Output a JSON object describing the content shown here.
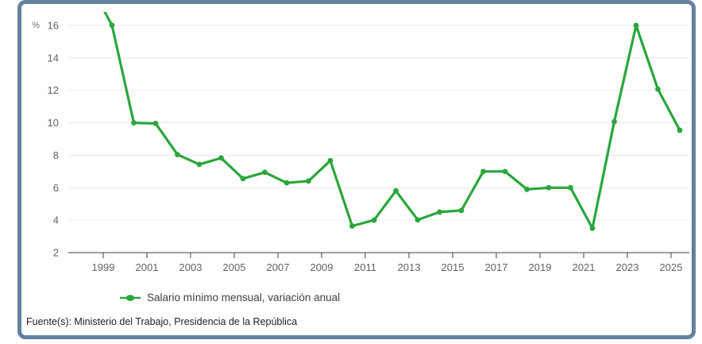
{
  "card": {
    "border_color": "#64829f",
    "background": "#ffffff"
  },
  "chart_data": {
    "type": "line",
    "title": "",
    "y_axis_unit": "%",
    "xlabel": "",
    "ylabel": "",
    "ylim": [
      2,
      16.8
    ],
    "y_ticks": [
      2,
      4,
      6,
      8,
      10,
      12,
      14,
      16
    ],
    "x_ticks": [
      1999,
      2001,
      2003,
      2005,
      2007,
      2009,
      2011,
      2013,
      2015,
      2017,
      2019,
      2021,
      2023,
      2025
    ],
    "grid": "horizontal",
    "legend_position": "bottom-left",
    "colors": {
      "series_green": "#2aa63c",
      "gridline": "#e8eaed",
      "axis": "#424242",
      "tick_text": "#5f6368"
    },
    "series": [
      {
        "name": "Salario mínimo mensual, variación anual",
        "color": "#2aa63c",
        "x": [
          1998,
          1999,
          2000,
          2001,
          2002,
          2003,
          2004,
          2005,
          2006,
          2007,
          2008,
          2009,
          2010,
          2011,
          2012,
          2013,
          2014,
          2015,
          2016,
          2017,
          2018,
          2019,
          2020,
          2021,
          2022,
          2023,
          2024,
          2025
        ],
        "values": [
          18.5,
          16.01,
          10.0,
          9.96,
          8.04,
          7.44,
          7.83,
          6.56,
          6.95,
          6.3,
          6.41,
          7.67,
          3.64,
          4.0,
          5.81,
          4.02,
          4.5,
          4.6,
          7.0,
          7.0,
          5.9,
          6.0,
          6.0,
          3.5,
          10.07,
          16.0,
          12.07,
          9.54
        ]
      }
    ]
  },
  "legend": {
    "label": "Salario mínimo mensual, variación anual"
  },
  "footer": {
    "source": "Fuente(s): Ministerio del Trabajo, Presidencia de la República"
  }
}
